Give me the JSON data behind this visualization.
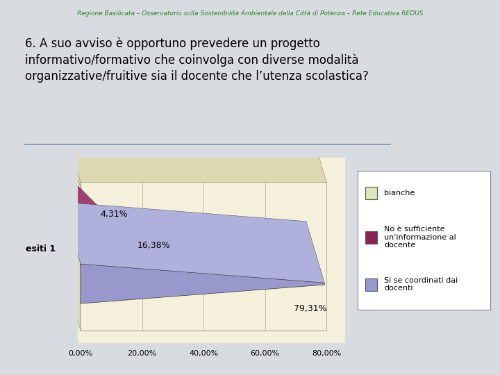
{
  "header": "Regione Basilicata – Osservatorio sulla Sostenibilità Ambientale della Città di Potenza – Rete Educativa REDUS",
  "question": "6. A suo avviso è opportuno prevedere un progetto\ninformativo/formativo che coinvolga con diverse modalità\norganizzative/fruitive sia il docente che l’utenza scolastica?",
  "background_color": "#d8dce0",
  "panel_bg": "#f5f0dc",
  "panel_top_color": "#ddd8b0",
  "panel_right_color": "#ccc8a0",
  "panel_border": "#aaa888",
  "categories": [
    "bianche",
    "No è sufficiente\nun'informazione al\ndocente",
    "Si se coordinati dai\ndocenti"
  ],
  "values": [
    4.31,
    16.38,
    79.31
  ],
  "colors": [
    "#dde8b8",
    "#8b2252",
    "#9898cc"
  ],
  "top_colors": [
    "#eef0d0",
    "#a04070",
    "#b0b0dd"
  ],
  "xlim_max": 80,
  "xticks": [
    0,
    20,
    40,
    60,
    80
  ],
  "xticklabels": [
    "0,00%",
    "20,00%",
    "40,00%",
    "60,00%",
    "80,00%"
  ],
  "ylabel": "esiti 1",
  "labels": [
    "4,31%",
    "16,38%",
    "79,31%"
  ],
  "header_color": "#2e7b2e",
  "legend_fontsize": 8,
  "axis_fontsize": 8,
  "question_fontsize": 12
}
